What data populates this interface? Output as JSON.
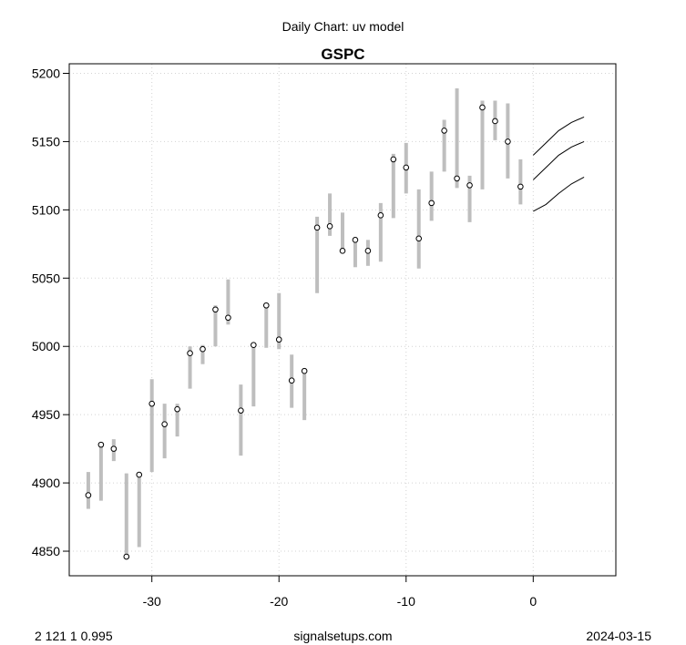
{
  "header": {
    "subtitle": "Daily Chart: uv model",
    "title": "GSPC"
  },
  "footer": {
    "left": "2 121 1 0.995",
    "center": "signalsetups.com",
    "right": "2024-03-15"
  },
  "chart_data": {
    "type": "candlestick",
    "title": "GSPC",
    "subtitle": "Daily Chart: uv model",
    "xlim": [
      -36.5,
      6.5
    ],
    "ylim": [
      4832,
      5207
    ],
    "x_ticks": [
      -30,
      -20,
      -10,
      0
    ],
    "y_ticks": [
      4850,
      4900,
      4950,
      5000,
      5050,
      5100,
      5150,
      5200
    ],
    "grid": true,
    "colors": {
      "range_bar": "#bebebe",
      "close_point": "#000000",
      "forecast_line": "#000000",
      "grid": "#d3d3d3"
    },
    "bars": [
      {
        "x": -35,
        "low": 4881,
        "high": 4908,
        "close": 4891
      },
      {
        "x": -34,
        "low": 4887,
        "high": 4929,
        "close": 4928
      },
      {
        "x": -33,
        "low": 4916,
        "high": 4932,
        "close": 4925
      },
      {
        "x": -32,
        "low": 4845,
        "high": 4907,
        "close": 4846
      },
      {
        "x": -31,
        "low": 4853,
        "high": 4908,
        "close": 4906
      },
      {
        "x": -30,
        "low": 4908,
        "high": 4976,
        "close": 4958
      },
      {
        "x": -29,
        "low": 4918,
        "high": 4958,
        "close": 4943
      },
      {
        "x": -28,
        "low": 4934,
        "high": 4958,
        "close": 4954
      },
      {
        "x": -27,
        "low": 4969,
        "high": 5000,
        "close": 4995
      },
      {
        "x": -26,
        "low": 4987,
        "high": 5001,
        "close": 4998
      },
      {
        "x": -25,
        "low": 5000,
        "high": 5030,
        "close": 5027
      },
      {
        "x": -24,
        "low": 5016,
        "high": 5049,
        "close": 5021
      },
      {
        "x": -23,
        "low": 4920,
        "high": 4972,
        "close": 4953
      },
      {
        "x": -22,
        "low": 4956,
        "high": 5002,
        "close": 5001
      },
      {
        "x": -21,
        "low": 4999,
        "high": 5032,
        "close": 5030
      },
      {
        "x": -20,
        "low": 4998,
        "high": 5039,
        "close": 5005
      },
      {
        "x": -19,
        "low": 4955,
        "high": 4994,
        "close": 4975
      },
      {
        "x": -18,
        "low": 4946,
        "high": 4984,
        "close": 4982
      },
      {
        "x": -17,
        "low": 5039,
        "high": 5095,
        "close": 5087
      },
      {
        "x": -16,
        "low": 5081,
        "high": 5112,
        "close": 5088
      },
      {
        "x": -15,
        "low": 5068,
        "high": 5098,
        "close": 5070
      },
      {
        "x": -14,
        "low": 5058,
        "high": 5080,
        "close": 5078
      },
      {
        "x": -13,
        "low": 5059,
        "high": 5078,
        "close": 5070
      },
      {
        "x": -12,
        "low": 5062,
        "high": 5105,
        "close": 5096
      },
      {
        "x": -11,
        "low": 5094,
        "high": 5141,
        "close": 5137
      },
      {
        "x": -10,
        "low": 5112,
        "high": 5149,
        "close": 5131
      },
      {
        "x": -9,
        "low": 5057,
        "high": 5115,
        "close": 5079
      },
      {
        "x": -8,
        "low": 5092,
        "high": 5128,
        "close": 5105
      },
      {
        "x": -7,
        "low": 5128,
        "high": 5166,
        "close": 5158
      },
      {
        "x": -6,
        "low": 5116,
        "high": 5189,
        "close": 5123
      },
      {
        "x": -5,
        "low": 5091,
        "high": 5125,
        "close": 5118
      },
      {
        "x": -4,
        "low": 5115,
        "high": 5180,
        "close": 5175
      },
      {
        "x": -3,
        "low": 5151,
        "high": 5180,
        "close": 5165
      },
      {
        "x": -2,
        "low": 5123,
        "high": 5178,
        "close": 5150
      },
      {
        "x": -1,
        "low": 5104,
        "high": 5137,
        "close": 5117
      }
    ],
    "forecast_lines": [
      {
        "name": "upper",
        "x": [
          0,
          1,
          2,
          3,
          4
        ],
        "y": [
          5140,
          5149,
          5158,
          5164,
          5168
        ]
      },
      {
        "name": "middle",
        "x": [
          0,
          1,
          2,
          3,
          4
        ],
        "y": [
          5122,
          5131,
          5140,
          5146,
          5150
        ]
      },
      {
        "name": "lower",
        "x": [
          0,
          1,
          2,
          3,
          4
        ],
        "y": [
          5099,
          5104,
          5112,
          5119,
          5124
        ]
      }
    ]
  }
}
